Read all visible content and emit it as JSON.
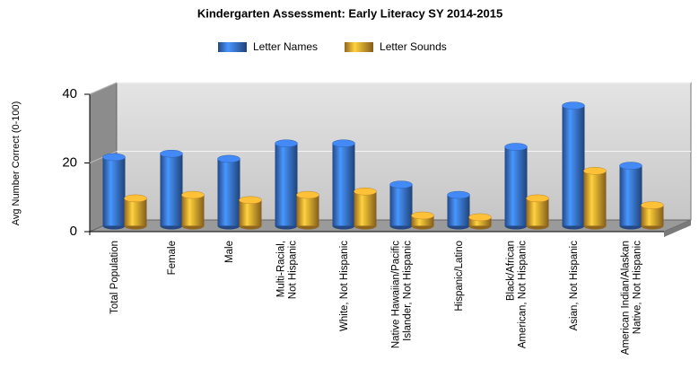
{
  "chart_data": {
    "type": "bar",
    "title": "Kindergarten Assessment: Early Literacy  SY 2014-2015",
    "y_label": "Avg Number Correct (0-100)",
    "categories": [
      "Total Population",
      "Female",
      "Male",
      "Multi-Racial,\nNot Hispanic",
      "White, Not Hispanic",
      "Native Hawaiian/Pacific\nIslander, Not Hispanic",
      "Hispanic/Latino",
      "Black/African\nAmerican, Not Hispanic",
      "Asian, Not Hispanic",
      "American Indian/Alaskan\nNative, Not Hispanic"
    ],
    "series": [
      {
        "name": "Letter Names",
        "color": "#3a78d8",
        "values": [
          20,
          21,
          19.5,
          24,
          24,
          12,
          9,
          23,
          35,
          17.5
        ]
      },
      {
        "name": "Letter Sounds",
        "color": "#f0a830",
        "values": [
          8,
          9,
          7.5,
          9,
          10,
          3,
          2.5,
          8,
          16,
          6
        ]
      }
    ],
    "ylim": [
      0,
      40
    ],
    "yticks": [
      0,
      20,
      40
    ],
    "grid": true
  }
}
